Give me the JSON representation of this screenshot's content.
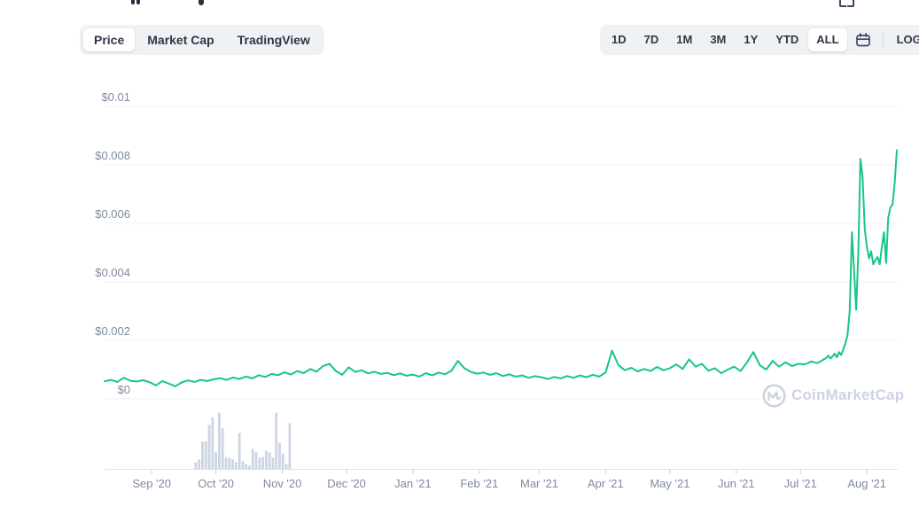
{
  "tabs": {
    "items": [
      {
        "label": "Price",
        "active": true
      },
      {
        "label": "Market Cap",
        "active": false
      },
      {
        "label": "TradingView",
        "active": false
      }
    ]
  },
  "range_toolbar": {
    "buttons": [
      {
        "label": "1D",
        "active": false
      },
      {
        "label": "7D",
        "active": false
      },
      {
        "label": "1M",
        "active": false
      },
      {
        "label": "3M",
        "active": false
      },
      {
        "label": "1Y",
        "active": false
      },
      {
        "label": "YTD",
        "active": false
      },
      {
        "label": "ALL",
        "active": true
      }
    ],
    "calendar_icon": "calendar-icon",
    "log_label": "LOG"
  },
  "watermark": {
    "text": "CoinMarketCap"
  },
  "colors": {
    "accent_green": "#16c784",
    "toolbar_bg": "#eff2f5",
    "text_dark": "#323546",
    "axis_text": "#7f8aa0",
    "gridline": "#eef0f4",
    "axis_line": "#dde2ec",
    "tick_mark": "#ccd3df",
    "volume_bar": "#cdd4e4",
    "watermark_gray": "#ccd3e1"
  },
  "chart_data": {
    "type": "line",
    "title": "",
    "grid": true,
    "legend": false,
    "x_axis": {
      "start_date": "2020-08-10",
      "end_date": "2021-08-15",
      "tick_labels": [
        "Sep '20",
        "Oct '20",
        "Nov '20",
        "Dec '20",
        "Jan '21",
        "Feb '21",
        "Mar '21",
        "Apr '21",
        "May '21",
        "Jun '21",
        "Jul '21",
        "Aug '21"
      ]
    },
    "y_axis": {
      "unit": "USD",
      "range": [
        0,
        0.01
      ],
      "tick_values": [
        0,
        0.002,
        0.004,
        0.006,
        0.008,
        0.01
      ],
      "tick_labels": [
        "$0",
        "$0.002",
        "$0.004",
        "$0.006",
        "$0.008",
        "$0.01"
      ]
    },
    "series": [
      {
        "name": "Price (USD)",
        "color": "#16c784",
        "start_date": "2020-08-10",
        "day_offsets": [
          0,
          3,
          6,
          9,
          12,
          15,
          18,
          21,
          24,
          27,
          30,
          33,
          36,
          39,
          42,
          45,
          48,
          51,
          54,
          57,
          60,
          63,
          66,
          69,
          72,
          75,
          78,
          81,
          84,
          87,
          90,
          93,
          96,
          99,
          102,
          105,
          108,
          111,
          114,
          117,
          120,
          123,
          126,
          129,
          132,
          135,
          138,
          141,
          144,
          147,
          150,
          153,
          156,
          159,
          162,
          165,
          168,
          171,
          174,
          177,
          180,
          183,
          186,
          189,
          192,
          195,
          198,
          201,
          204,
          207,
          210,
          213,
          216,
          219,
          222,
          225,
          228,
          231,
          234,
          237,
          240,
          243,
          246,
          249,
          252,
          255,
          258,
          261,
          264,
          267,
          270,
          273,
          276,
          279,
          282,
          285,
          288,
          291,
          294,
          297,
          300,
          303,
          306,
          309,
          312,
          315,
          318,
          321,
          324,
          327,
          330,
          333,
          336,
          337,
          338,
          339,
          340,
          341,
          342,
          343,
          344,
          345,
          346,
          347,
          348,
          349,
          350,
          351,
          352,
          353,
          354,
          355,
          356,
          357,
          358,
          359,
          360,
          361,
          362,
          363,
          364,
          365,
          366,
          367,
          368,
          369,
          370
        ],
        "values": [
          0.0006,
          0.00065,
          0.00058,
          0.00072,
          0.00062,
          0.00059,
          0.00064,
          0.00057,
          0.00046,
          0.00061,
          0.00052,
          0.00043,
          0.00056,
          0.00063,
          0.00058,
          0.00065,
          0.00061,
          0.00067,
          0.00071,
          0.00065,
          0.00073,
          0.00068,
          0.00076,
          0.0007,
          0.00081,
          0.00075,
          0.00085,
          0.00081,
          0.00091,
          0.00083,
          0.00095,
          0.00088,
          0.00102,
          0.00093,
          0.00112,
          0.0012,
          0.00095,
          0.00082,
          0.00108,
          0.00092,
          0.00098,
          0.00087,
          0.00093,
          0.00085,
          0.00089,
          0.00081,
          0.00087,
          0.00079,
          0.00083,
          0.00076,
          0.00088,
          0.0008,
          0.0009,
          0.00084,
          0.00096,
          0.0013,
          0.00105,
          0.00092,
          0.00086,
          0.0009,
          0.00082,
          0.00088,
          0.00078,
          0.00084,
          0.00076,
          0.0008,
          0.00072,
          0.00078,
          0.00074,
          0.00068,
          0.00075,
          0.0007,
          0.00078,
          0.00072,
          0.0008,
          0.00074,
          0.00082,
          0.00076,
          0.0009,
          0.00165,
          0.00115,
          0.00098,
          0.00106,
          0.00094,
          0.00102,
          0.00095,
          0.00109,
          0.00098,
          0.00105,
          0.00118,
          0.00102,
          0.00135,
          0.0011,
          0.0012,
          0.00096,
          0.00105,
          0.00088,
          0.001,
          0.0011,
          0.00095,
          0.00125,
          0.0016,
          0.00115,
          0.001,
          0.0013,
          0.0011,
          0.00125,
          0.00112,
          0.0012,
          0.00118,
          0.00128,
          0.00122,
          0.00135,
          0.0014,
          0.00148,
          0.00138,
          0.00145,
          0.00155,
          0.00142,
          0.0016,
          0.0015,
          0.0017,
          0.0019,
          0.0022,
          0.003,
          0.0057,
          0.0044,
          0.00305,
          0.005,
          0.0082,
          0.0076,
          0.0058,
          0.0052,
          0.0048,
          0.00505,
          0.0046,
          0.00475,
          0.00485,
          0.0046,
          0.0052,
          0.0057,
          0.00465,
          0.0062,
          0.00655,
          0.00665,
          0.0074,
          0.0085
        ]
      }
    ],
    "volume_bars": {
      "color": "#cdd4e4",
      "first_day_offset": 42.6,
      "day_step": 1.566,
      "relative_heights": [
        0.12,
        0.17,
        0.47,
        0.48,
        0.76,
        0.89,
        0.29,
        0.97,
        0.7,
        0.2,
        0.2,
        0.17,
        0.12,
        0.62,
        0.14,
        0.09,
        0.06,
        0.35,
        0.29,
        0.2,
        0.21,
        0.32,
        0.29,
        0.2,
        0.97,
        0.45,
        0.27,
        0.09,
        0.79
      ]
    }
  }
}
